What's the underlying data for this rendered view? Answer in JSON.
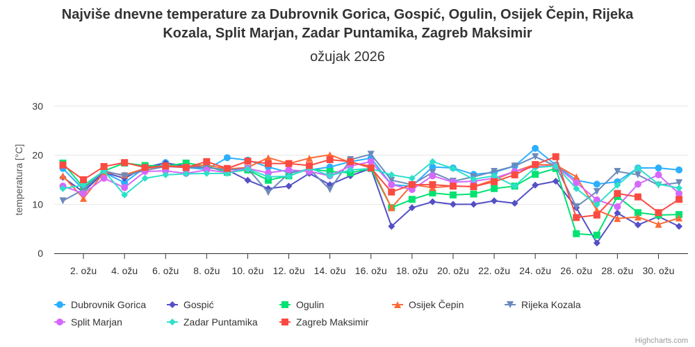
{
  "chart_data": {
    "type": "line",
    "title_lines": [
      "Najviše dnevne temperature za Dubrovnik Gorica, Gospić, Ogulin, Osijek Čepin, Rijeka",
      "Kozala, Split Marjan, Zadar Puntamika, Zagreb Maksimir"
    ],
    "subtitle": "ožujak 2026",
    "ylabel": "temperatura [°C]",
    "xlabel": "",
    "ylim": [
      0,
      30
    ],
    "yticks": [
      "0",
      "10",
      "20",
      "30"
    ],
    "grid": true,
    "legend": "bottom",
    "x": [
      1,
      2,
      3,
      4,
      5,
      6,
      7,
      8,
      9,
      10,
      11,
      12,
      13,
      14,
      15,
      16,
      17,
      18,
      19,
      20,
      21,
      22,
      23,
      24,
      25,
      26,
      27,
      28,
      29,
      30,
      31
    ],
    "xtick_labels": [
      "2. ožu",
      "4. ožu",
      "6. ožu",
      "8. ožu",
      "10. ožu",
      "12. ožu",
      "14. ožu",
      "16. ožu",
      "18. ožu",
      "20. ožu",
      "22. ožu",
      "24. ožu",
      "26. ožu",
      "28. ožu",
      "30. ožu"
    ],
    "series": [
      {
        "name": "Dubrovnik Gorica",
        "color": "#2caffe",
        "marker": "circle",
        "values": [
          17.3,
          13,
          16.5,
          14.4,
          17.5,
          18.5,
          17.5,
          17.1,
          19.5,
          19,
          17.6,
          16.5,
          17,
          17.6,
          18.7,
          19.4,
          14,
          13.7,
          17.6,
          17.4,
          16.1,
          16.5,
          17.8,
          21.4,
          18,
          14.9,
          14.1,
          14.6,
          17.4,
          17.4,
          17
        ]
      },
      {
        "name": "Gospić",
        "color": "#544fc5",
        "marker": "diamond",
        "values": [
          15.5,
          12.5,
          16.5,
          15.3,
          17.5,
          18.4,
          17.8,
          17.5,
          17,
          14.9,
          13.2,
          13.7,
          16.3,
          14,
          15.8,
          17.3,
          5.5,
          9.3,
          10.5,
          10,
          10,
          10.7,
          10.2,
          13.9,
          14.7,
          9.3,
          2.1,
          8.2,
          5.8,
          7.5,
          5.5
        ]
      },
      {
        "name": "Ogulin",
        "color": "#00e272",
        "marker": "square",
        "values": [
          18.4,
          13.4,
          16.8,
          18.4,
          17.9,
          17.8,
          18.4,
          17.8,
          16.5,
          17,
          14.9,
          15.8,
          17.2,
          16.7,
          16.4,
          17.3,
          9.3,
          11,
          12.3,
          11.9,
          12.1,
          13.2,
          13.7,
          16.1,
          17.3,
          4,
          3.7,
          11.6,
          8.3,
          7.8,
          7.9
        ]
      },
      {
        "name": "Osijek Čepin",
        "color": "#fe6a35",
        "marker": "triangle",
        "values": [
          15.8,
          11.2,
          16.5,
          16,
          17.3,
          17.8,
          17.7,
          18,
          17.2,
          17.5,
          19.5,
          18.3,
          19.4,
          20.1,
          18.5,
          17.8,
          9.3,
          14,
          13.4,
          13.7,
          13.6,
          15,
          16.7,
          18.1,
          18,
          15.6,
          8.8,
          7.1,
          7.4,
          5.9,
          7.2
        ]
      },
      {
        "name": "Rijeka Kozala",
        "color": "#6b8abc",
        "marker": "triangle-down",
        "values": [
          10.7,
          13,
          16.8,
          15.8,
          16.9,
          17.7,
          17.5,
          17.5,
          17,
          17.3,
          12.4,
          16.3,
          17.2,
          13,
          19.1,
          20.2,
          14.9,
          14,
          16.5,
          14.7,
          15.6,
          16.7,
          17.8,
          19.7,
          17.8,
          9.5,
          12.6,
          16.7,
          16,
          13.9,
          14.4
        ]
      },
      {
        "name": "Split Marjan",
        "color": "#d568fb",
        "marker": "circle",
        "values": [
          13.7,
          12.2,
          15.3,
          13.4,
          16.7,
          16.8,
          16.3,
          17,
          16.5,
          17.3,
          16.4,
          17,
          16.7,
          15.8,
          17.8,
          18.7,
          14,
          13,
          15.8,
          14.5,
          14.7,
          15.3,
          16.7,
          17.7,
          17.8,
          14.4,
          10.9,
          9.5,
          14.1,
          16,
          12.2
        ]
      },
      {
        "name": "Zadar Puntamika",
        "color": "#2ee0ca",
        "marker": "diamond",
        "values": [
          13.2,
          13.9,
          16.8,
          11.9,
          15.3,
          16,
          16.2,
          16.3,
          16.3,
          17.2,
          15.6,
          15.7,
          17.4,
          15.8,
          17,
          17.3,
          16,
          15.3,
          18.7,
          17.3,
          15.1,
          15.8,
          13.7,
          17.5,
          17.8,
          13.2,
          9.9,
          13.9,
          17.4,
          14.1,
          13.3
        ]
      },
      {
        "name": "Zagreb Maksimir",
        "color": "#fa4b42",
        "marker": "square",
        "values": [
          18,
          15,
          17.7,
          18.5,
          17.5,
          17.8,
          17.5,
          18.7,
          17.3,
          18.8,
          18.3,
          18.3,
          17.9,
          19.1,
          18.7,
          17.4,
          12.5,
          14,
          14,
          13.7,
          13.6,
          14.6,
          16,
          18.1,
          19.7,
          7.3,
          7.8,
          12.2,
          11.5,
          8.3,
          11
        ]
      }
    ]
  },
  "credits": "Highcharts.com"
}
